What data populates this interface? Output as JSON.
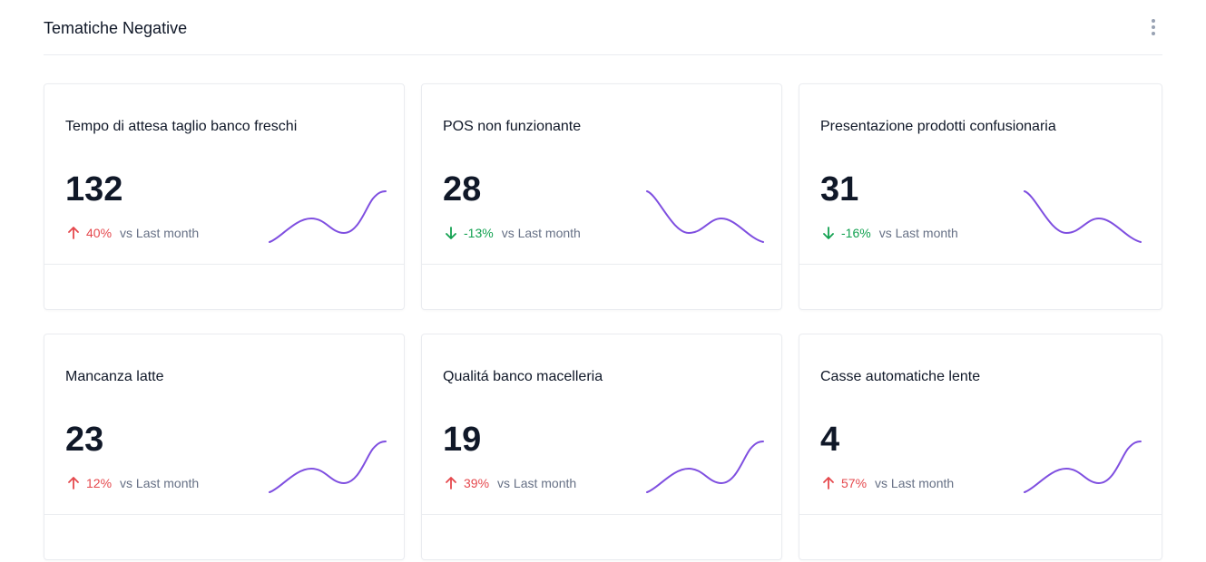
{
  "header": {
    "title": "Tematiche Negative",
    "menu_icon": "more-vertical-icon"
  },
  "colors": {
    "up": "#e5484d",
    "down": "#12a150",
    "sparkline": "#7f4fe0"
  },
  "cards": [
    {
      "title": "Tempo di attesa taglio banco freschi",
      "value": "132",
      "direction": "up",
      "pct": "40%",
      "comparison": "vs  Last month",
      "spark": "rise"
    },
    {
      "title": "POS non funzionante",
      "value": "28",
      "direction": "down",
      "pct": "-13%",
      "comparison": "vs Last month",
      "spark": "fall"
    },
    {
      "title": "Presentazione prodotti confusionaria",
      "value": "31",
      "direction": "down",
      "pct": "-16%",
      "comparison": "vs Last month",
      "spark": "fall"
    },
    {
      "title": "Mancanza latte",
      "value": "23",
      "direction": "up",
      "pct": "12%",
      "comparison": "vs Last month",
      "spark": "rise"
    },
    {
      "title": "Qualitá banco macelleria",
      "value": "19",
      "direction": "up",
      "pct": "39%",
      "comparison": "vs Last month",
      "spark": "rise"
    },
    {
      "title": "Casse automatiche lente",
      "value": "4",
      "direction": "up",
      "pct": "57%",
      "comparison": "vs Last month",
      "spark": "rise"
    }
  ]
}
